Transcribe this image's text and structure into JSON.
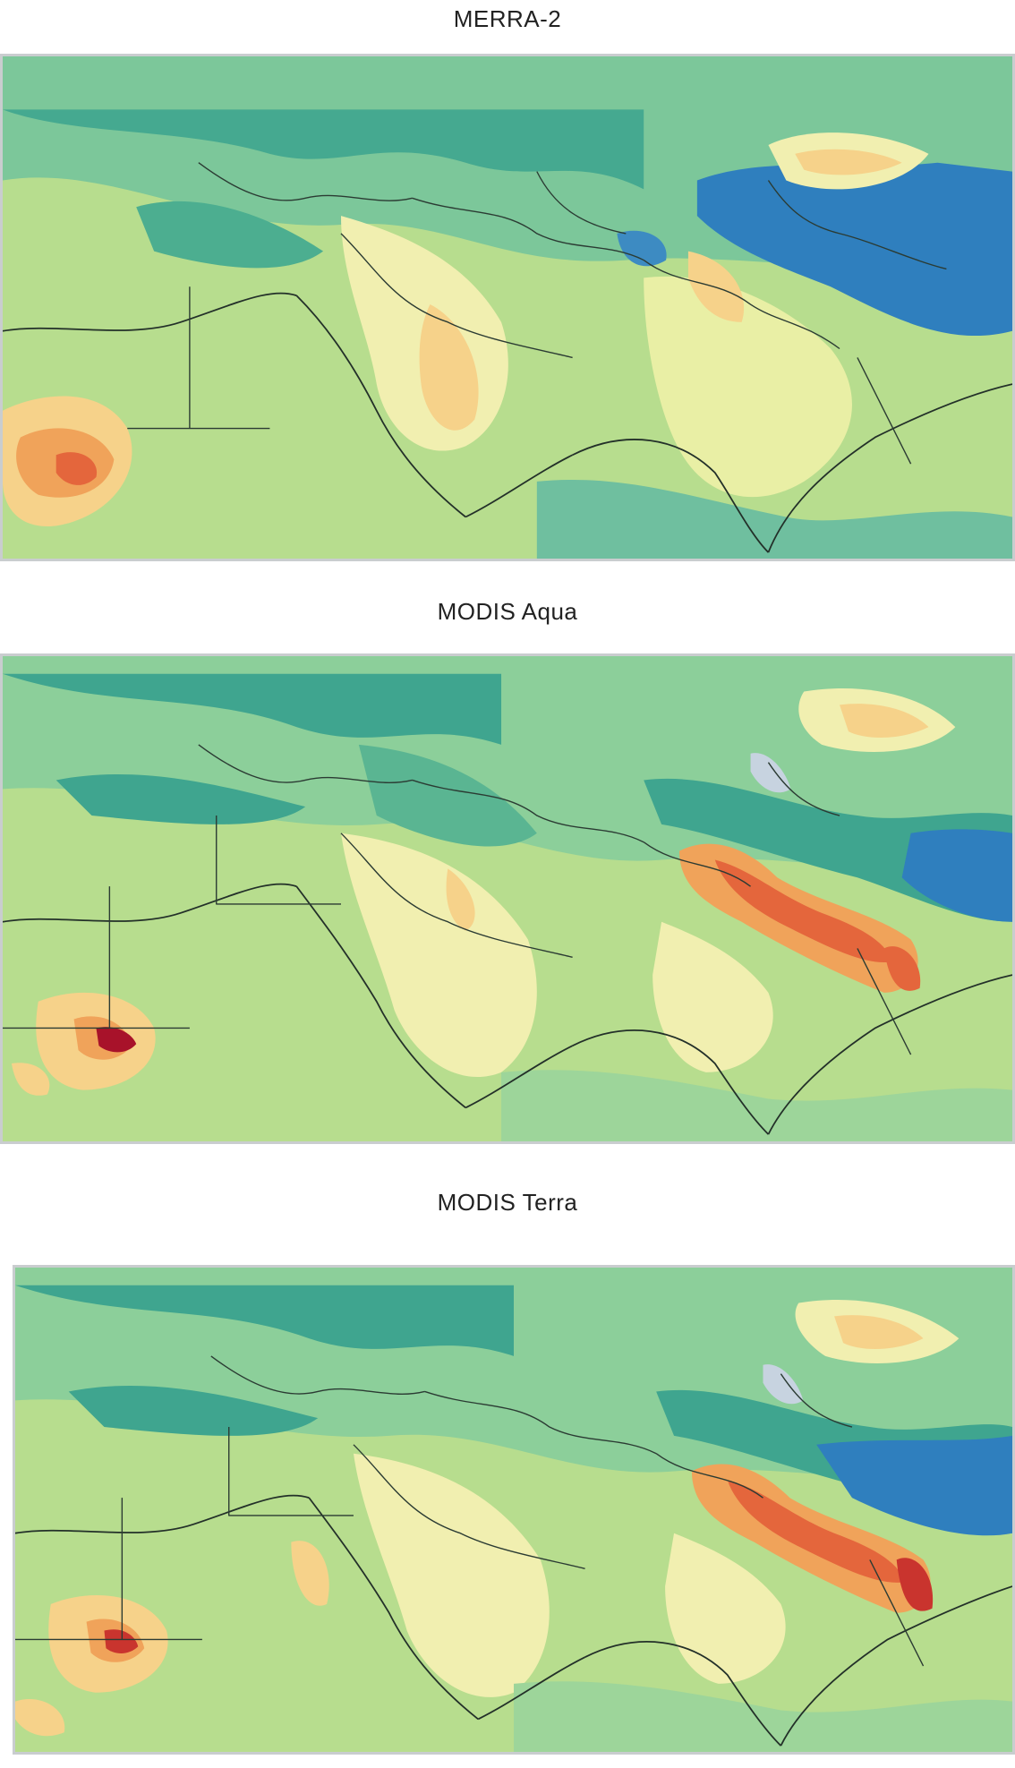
{
  "panels": [
    {
      "title": "MERRA-2"
    },
    {
      "title": "MODIS Aqua"
    },
    {
      "title": "MODIS Terra"
    }
  ],
  "colors": {
    "background": "#6fbf9f",
    "sea_teal": "#3fa58f",
    "light_green": "#b7dd8e",
    "pale_yellow": "#f1efb0",
    "light_orange": "#f6d28a",
    "orange": "#f0a35a",
    "red_orange": "#e4663c",
    "dark_red": "#a8122a",
    "blue": "#2f7fbe",
    "light_blue_gray": "#c7d3e0"
  }
}
